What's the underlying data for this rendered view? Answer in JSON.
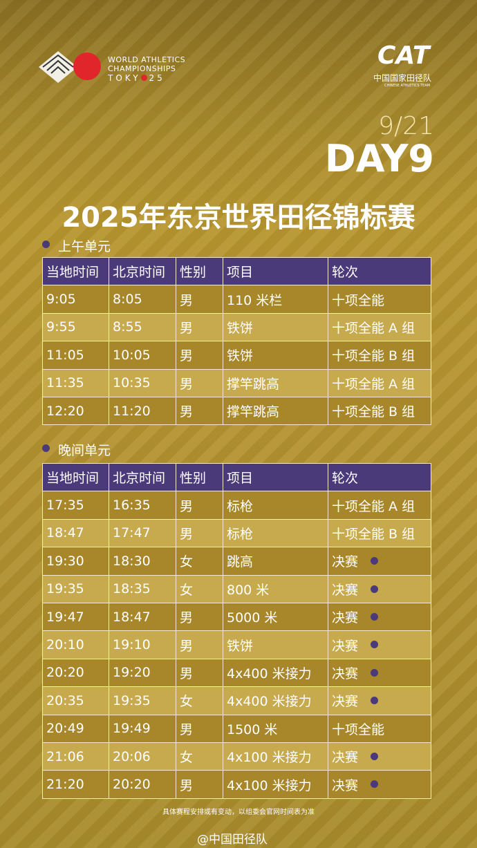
{
  "logos": {
    "wa_line1": "WORLD ATHLETICS",
    "wa_line2": "CHAMPIONSHIPS",
    "wa_city": "TOKY",
    "wa_year": "25",
    "cat": "CAT",
    "cat_cn": "中国国家田径队",
    "cat_en": "CHINESE ATHLETICS TEAM"
  },
  "header": {
    "date": "9/21",
    "day": "DAY9",
    "title": "2025年东京世界田径锦标赛"
  },
  "morning": {
    "label": "上午单元",
    "columns": [
      "当地时间",
      "北京时间",
      "性别",
      "项目",
      "轮次"
    ],
    "rows": [
      [
        "9:05",
        "8:05",
        "男",
        "110 米栏",
        "十项全能"
      ],
      [
        "9:55",
        "8:55",
        "男",
        "铁饼",
        "十项全能 A 组"
      ],
      [
        "11:05",
        "10:05",
        "男",
        "铁饼",
        "十项全能 B 组"
      ],
      [
        "11:35",
        "10:35",
        "男",
        "撑竿跳高",
        "十项全能 A 组"
      ],
      [
        "12:20",
        "11:20",
        "男",
        "撑竿跳高",
        "十项全能 B 组"
      ]
    ]
  },
  "evening": {
    "label": "晚间单元",
    "columns": [
      "当地时间",
      "北京时间",
      "性别",
      "项目",
      "轮次"
    ],
    "rows": [
      [
        "17:35",
        "16:35",
        "男",
        "标枪",
        "十项全能 A 组"
      ],
      [
        "18:47",
        "17:47",
        "男",
        "标枪",
        "十项全能 B 组"
      ],
      [
        "19:30",
        "18:30",
        "女",
        "跳高",
        "决赛"
      ],
      [
        "19:35",
        "18:35",
        "女",
        "800 米",
        "决赛"
      ],
      [
        "19:47",
        "18:47",
        "男",
        "5000 米",
        "决赛"
      ],
      [
        "20:10",
        "19:10",
        "男",
        "铁饼",
        "决赛"
      ],
      [
        "20:20",
        "19:20",
        "男",
        "4x400 米接力",
        "决赛"
      ],
      [
        "20:35",
        "19:35",
        "女",
        "4x400 米接力",
        "决赛"
      ],
      [
        "20:49",
        "19:49",
        "男",
        "1500 米",
        "十项全能"
      ],
      [
        "21:06",
        "20:06",
        "女",
        "4x100 米接力",
        "决赛"
      ],
      [
        "21:20",
        "20:20",
        "男",
        "4x100 米接力",
        "决赛"
      ]
    ]
  },
  "footer": {
    "note": "具体赛程安排或有变动，以组委会官网时间表为准",
    "weibo": "@中国田径队"
  }
}
